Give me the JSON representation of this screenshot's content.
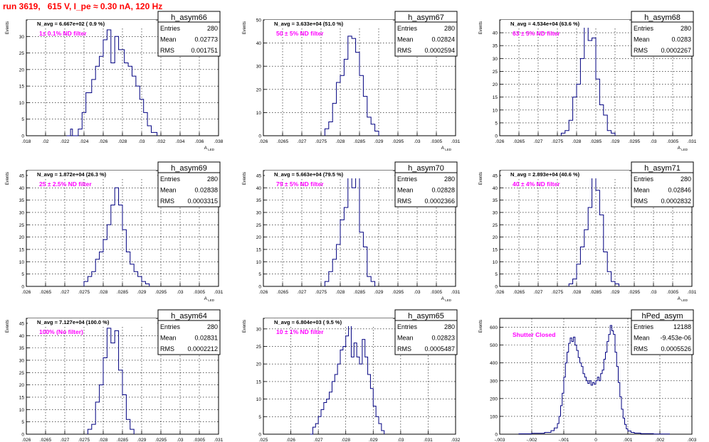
{
  "page": {
    "title": "run 3619,   615 V, I_pe ≈ 0.30 nA, 120 Hz"
  },
  "chart_data": [
    {
      "type": "histogram",
      "name": "h_asym66",
      "navg": "N_avg = 6.667e+02 ( 0.9 %)",
      "filter": "1± 0.1% ND filter",
      "stats": {
        "entries": "280",
        "mean": "0.02773",
        "rms": "0.001751"
      },
      "xlim": [
        0.018,
        0.038
      ],
      "ylim": [
        0,
        35
      ],
      "xticks": [
        0.018,
        0.02,
        0.022,
        0.024,
        0.026,
        0.028,
        0.03,
        0.032,
        0.034,
        0.036,
        0.038
      ],
      "yticks": [
        0,
        5,
        10,
        15,
        20,
        25,
        30
      ],
      "xlabel": "A_{LED}",
      "ylabel": "Events",
      "bins": [
        [
          0.0222,
          0
        ],
        [
          0.0226,
          2
        ],
        [
          0.0228,
          0
        ],
        [
          0.0234,
          2
        ],
        [
          0.0238,
          7
        ],
        [
          0.0242,
          13
        ],
        [
          0.0248,
          17
        ],
        [
          0.0252,
          21
        ],
        [
          0.0256,
          24
        ],
        [
          0.026,
          29
        ],
        [
          0.0264,
          32
        ],
        [
          0.0268,
          22
        ],
        [
          0.0272,
          30
        ],
        [
          0.0276,
          26
        ],
        [
          0.0282,
          22
        ],
        [
          0.0286,
          21
        ],
        [
          0.029,
          18
        ],
        [
          0.0294,
          15
        ],
        [
          0.0298,
          11
        ],
        [
          0.0302,
          7
        ],
        [
          0.0306,
          3
        ],
        [
          0.031,
          1
        ],
        [
          0.0316,
          0
        ]
      ]
    },
    {
      "type": "histogram",
      "name": "h_asym67",
      "navg": "N_avg = 3.633e+04 (51.0 %)",
      "filter": "50 ± 5% ND filter",
      "stats": {
        "entries": "280",
        "mean": "0.02824",
        "rms": "0.0002594"
      },
      "xlim": [
        0.026,
        0.031
      ],
      "ylim": [
        0,
        50
      ],
      "xticks": [
        0.026,
        0.0265,
        0.027,
        0.0275,
        0.028,
        0.0285,
        0.029,
        0.0295,
        0.03,
        0.0305,
        0.031
      ],
      "yticks": [
        0,
        10,
        20,
        30,
        40,
        50
      ],
      "xlabel": "A_{LED}",
      "ylabel": "Events",
      "bins": [
        [
          0.0276,
          0
        ],
        [
          0.0276,
          3
        ],
        [
          0.0277,
          6
        ],
        [
          0.0278,
          14
        ],
        [
          0.0279,
          23
        ],
        [
          0.028,
          26
        ],
        [
          0.0281,
          33
        ],
        [
          0.0282,
          43
        ],
        [
          0.0283,
          42
        ],
        [
          0.0284,
          36
        ],
        [
          0.0285,
          26
        ],
        [
          0.0286,
          17
        ],
        [
          0.0287,
          8
        ],
        [
          0.0288,
          5
        ],
        [
          0.0289,
          2
        ],
        [
          0.029,
          0
        ]
      ]
    },
    {
      "type": "histogram",
      "name": "h_asym68",
      "navg": "N_avg = 4.534e+04 (63.6 %)",
      "filter": "63 ± 5% ND filter",
      "stats": {
        "entries": "280",
        "mean": "0.0283",
        "rms": "0.0002267"
      },
      "xlim": [
        0.026,
        0.031
      ],
      "ylim": [
        0,
        45
      ],
      "xticks": [
        0.026,
        0.0265,
        0.027,
        0.0275,
        0.028,
        0.0285,
        0.029,
        0.0295,
        0.03,
        0.0305,
        0.031
      ],
      "yticks": [
        0,
        5,
        10,
        15,
        20,
        25,
        30,
        35,
        40
      ],
      "xlabel": "A_{LED}",
      "ylabel": "Events",
      "bins": [
        [
          0.0276,
          0
        ],
        [
          0.0276,
          1
        ],
        [
          0.0277,
          2
        ],
        [
          0.0278,
          6
        ],
        [
          0.0279,
          15
        ],
        [
          0.028,
          20
        ],
        [
          0.0281,
          30
        ],
        [
          0.0282,
          43
        ],
        [
          0.0283,
          37
        ],
        [
          0.0284,
          38
        ],
        [
          0.0285,
          22
        ],
        [
          0.0286,
          12
        ],
        [
          0.0287,
          8
        ],
        [
          0.0288,
          2
        ],
        [
          0.0289,
          1
        ],
        [
          0.029,
          0
        ]
      ]
    },
    {
      "type": "histogram",
      "name": "h_asym69",
      "navg": "N_avg = 1.872e+04 (26.3 %)",
      "filter": "25 ± 2.5% ND filter",
      "stats": {
        "entries": "280",
        "mean": "0.02838",
        "rms": "0.0003315"
      },
      "xlim": [
        0.026,
        0.031
      ],
      "ylim": [
        0,
        47
      ],
      "xticks": [
        0.026,
        0.0265,
        0.027,
        0.0275,
        0.028,
        0.0285,
        0.029,
        0.0295,
        0.03,
        0.0305,
        0.031
      ],
      "yticks": [
        0,
        5,
        10,
        15,
        20,
        25,
        30,
        35,
        40,
        45
      ],
      "xlabel": "A_{LED}",
      "ylabel": "Events",
      "bins": [
        [
          0.0275,
          0
        ],
        [
          0.0275,
          2
        ],
        [
          0.0276,
          4
        ],
        [
          0.0277,
          6
        ],
        [
          0.0278,
          11
        ],
        [
          0.0279,
          14
        ],
        [
          0.028,
          19
        ],
        [
          0.0281,
          25
        ],
        [
          0.0282,
          33
        ],
        [
          0.0283,
          40
        ],
        [
          0.0284,
          33
        ],
        [
          0.0285,
          23
        ],
        [
          0.0286,
          14
        ],
        [
          0.0287,
          9
        ],
        [
          0.0288,
          6
        ],
        [
          0.0289,
          4
        ],
        [
          0.029,
          2
        ],
        [
          0.0291,
          1
        ],
        [
          0.0292,
          0
        ]
      ]
    },
    {
      "type": "histogram",
      "name": "h_asym70",
      "navg": "N_avg = 5.663e+04 (79.5 %)",
      "filter": "79 ± 5% ND filter",
      "stats": {
        "entries": "280",
        "mean": "0.02828",
        "rms": "0.0002366"
      },
      "xlim": [
        0.026,
        0.031
      ],
      "ylim": [
        0,
        47
      ],
      "xticks": [
        0.026,
        0.0265,
        0.027,
        0.0275,
        0.028,
        0.0285,
        0.029,
        0.0295,
        0.03,
        0.0305,
        0.031
      ],
      "yticks": [
        0,
        5,
        10,
        15,
        20,
        25,
        30,
        35,
        40,
        45
      ],
      "xlabel": "A_{LED}",
      "ylabel": "Events",
      "bins": [
        [
          0.0276,
          0
        ],
        [
          0.0276,
          2
        ],
        [
          0.0277,
          6
        ],
        [
          0.0278,
          11
        ],
        [
          0.0279,
          17
        ],
        [
          0.028,
          27
        ],
        [
          0.0281,
          32
        ],
        [
          0.0282,
          46
        ],
        [
          0.0283,
          40
        ],
        [
          0.0284,
          46
        ],
        [
          0.0285,
          22
        ],
        [
          0.0286,
          16
        ],
        [
          0.0287,
          4
        ],
        [
          0.0288,
          2
        ],
        [
          0.0289,
          0
        ]
      ]
    },
    {
      "type": "histogram",
      "name": "h_asym71",
      "navg": "N_avg = 2.893e+04 (40.6 %)",
      "filter": "40 ± 4% ND filter",
      "stats": {
        "entries": "280",
        "mean": "0.02846",
        "rms": "0.0002832"
      },
      "xlim": [
        0.026,
        0.031
      ],
      "ylim": [
        0,
        47
      ],
      "xticks": [
        0.026,
        0.0265,
        0.027,
        0.0275,
        0.028,
        0.0285,
        0.029,
        0.0295,
        0.03,
        0.0305,
        0.031
      ],
      "yticks": [
        0,
        5,
        10,
        15,
        20,
        25,
        30,
        35,
        40,
        45
      ],
      "xlabel": "A_{LED}",
      "ylabel": "Events",
      "bins": [
        [
          0.0278,
          0
        ],
        [
          0.0278,
          1
        ],
        [
          0.0279,
          3
        ],
        [
          0.028,
          9
        ],
        [
          0.0281,
          16
        ],
        [
          0.0282,
          23
        ],
        [
          0.0283,
          32
        ],
        [
          0.0284,
          44
        ],
        [
          0.0285,
          39
        ],
        [
          0.0286,
          29
        ],
        [
          0.0287,
          14
        ],
        [
          0.0288,
          6
        ],
        [
          0.0289,
          2
        ],
        [
          0.029,
          1
        ],
        [
          0.0291,
          0
        ]
      ]
    },
    {
      "type": "histogram",
      "name": "h_asym64",
      "navg": "N_avg = 7.127e+04 (100.0 %)",
      "filter": "100% (No filter)",
      "stats": {
        "entries": "280",
        "mean": "0.02831",
        "rms": "0.0002212"
      },
      "xlim": [
        0.026,
        0.031
      ],
      "ylim": [
        0,
        47
      ],
      "xticks": [
        0.026,
        0.0265,
        0.027,
        0.0275,
        0.028,
        0.0285,
        0.029,
        0.0295,
        0.03,
        0.0305,
        0.031
      ],
      "yticks": [
        0,
        5,
        10,
        15,
        20,
        25,
        30,
        35,
        40,
        45
      ],
      "xlabel": "A_{LED}",
      "ylabel": "Events",
      "bins": [
        [
          0.0276,
          0
        ],
        [
          0.0276,
          2
        ],
        [
          0.0277,
          4
        ],
        [
          0.0278,
          13
        ],
        [
          0.0279,
          20
        ],
        [
          0.028,
          31
        ],
        [
          0.0281,
          43
        ],
        [
          0.0282,
          37
        ],
        [
          0.0283,
          42
        ],
        [
          0.0284,
          26
        ],
        [
          0.0285,
          16
        ],
        [
          0.0286,
          6
        ],
        [
          0.0287,
          2
        ],
        [
          0.0288,
          0
        ]
      ]
    },
    {
      "type": "histogram",
      "name": "h_asym65",
      "navg": "N_avg = 6.804e+03 ( 9.5 %)",
      "filter": "10 ± 1% ND filter",
      "stats": {
        "entries": "280",
        "mean": "0.02823",
        "rms": "0.0005487"
      },
      "xlim": [
        0.025,
        0.032
      ],
      "ylim": [
        0,
        33
      ],
      "xticks": [
        0.025,
        0.026,
        0.027,
        0.028,
        0.029,
        0.03,
        0.031,
        0.032
      ],
      "yticks": [
        0,
        5,
        10,
        15,
        20,
        25,
        30
      ],
      "xlabel": "A_{LED}",
      "ylabel": "Events",
      "bins": [
        [
          0.0267,
          0
        ],
        [
          0.0268,
          2
        ],
        [
          0.0269,
          3
        ],
        [
          0.027,
          5
        ],
        [
          0.0271,
          7
        ],
        [
          0.0272,
          9
        ],
        [
          0.0273,
          10
        ],
        [
          0.0274,
          12
        ],
        [
          0.0275,
          15
        ],
        [
          0.0276,
          17
        ],
        [
          0.0277,
          20
        ],
        [
          0.0278,
          24
        ],
        [
          0.0279,
          25
        ],
        [
          0.028,
          28
        ],
        [
          0.0281,
          31
        ],
        [
          0.0282,
          22
        ],
        [
          0.0283,
          26
        ],
        [
          0.0284,
          22
        ],
        [
          0.0285,
          20
        ],
        [
          0.0286,
          27
        ],
        [
          0.0287,
          22
        ],
        [
          0.0288,
          17
        ],
        [
          0.0289,
          13
        ],
        [
          0.029,
          8
        ],
        [
          0.0291,
          5
        ],
        [
          0.0292,
          3
        ],
        [
          0.0293,
          1
        ],
        [
          0.0294,
          0
        ]
      ]
    },
    {
      "type": "histogram",
      "name": "hPed_asym",
      "navg": "",
      "filter": "Shutter Closed",
      "stats": {
        "entries": "12188",
        "mean": "-9.453e-06",
        "rms": "0.0005526"
      },
      "xlim": [
        -0.003,
        0.003
      ],
      "ylim": [
        0,
        650
      ],
      "xticks": [
        -0.003,
        -0.002,
        -0.001,
        0,
        0.001,
        0.002,
        0.003
      ],
      "yticks": [
        0,
        100,
        200,
        300,
        400,
        500,
        600
      ],
      "xlabel": "A_{LED}",
      "ylabel": "Events",
      "bins": [
        [
          -0.0024,
          0
        ],
        [
          -0.0024,
          2
        ],
        [
          -0.002,
          5
        ],
        [
          -0.0016,
          10
        ],
        [
          -0.0014,
          20
        ],
        [
          -0.0013,
          35
        ],
        [
          -0.0012,
          60
        ],
        [
          -0.00115,
          100
        ],
        [
          -0.0011,
          160
        ],
        [
          -0.00105,
          230
        ],
        [
          -0.001,
          320
        ],
        [
          -0.00095,
          400
        ],
        [
          -0.0009,
          460
        ],
        [
          -0.00085,
          510
        ],
        [
          -0.0008,
          540
        ],
        [
          -0.00075,
          520
        ],
        [
          -0.0007,
          545
        ],
        [
          -0.00065,
          500
        ],
        [
          -0.0006,
          470
        ],
        [
          -0.00055,
          430
        ],
        [
          -0.0005,
          400
        ],
        [
          -0.00045,
          380
        ],
        [
          -0.0004,
          340
        ],
        [
          -0.00035,
          320
        ],
        [
          -0.0003,
          300
        ],
        [
          -0.00025,
          285
        ],
        [
          -0.0002,
          300
        ],
        [
          -0.00015,
          275
        ],
        [
          -0.0001,
          290
        ],
        [
          -5e-05,
          280
        ],
        [
          0,
          300
        ],
        [
          5e-05,
          320
        ],
        [
          0.0001,
          300
        ],
        [
          0.00015,
          340
        ],
        [
          0.0002,
          360
        ],
        [
          0.00025,
          420
        ],
        [
          0.0003,
          460
        ],
        [
          0.00035,
          520
        ],
        [
          0.0004,
          560
        ],
        [
          0.00045,
          610
        ],
        [
          0.0005,
          580
        ],
        [
          0.00055,
          560
        ],
        [
          0.0006,
          460
        ],
        [
          0.00065,
          380
        ],
        [
          0.0007,
          290
        ],
        [
          0.00075,
          210
        ],
        [
          0.0008,
          140
        ],
        [
          0.00085,
          90
        ],
        [
          0.0009,
          55
        ],
        [
          0.00095,
          30
        ],
        [
          0.001,
          18
        ],
        [
          0.0011,
          10
        ],
        [
          0.0012,
          6
        ],
        [
          0.0014,
          3
        ],
        [
          0.0018,
          1
        ],
        [
          0.0023,
          0
        ]
      ]
    }
  ]
}
